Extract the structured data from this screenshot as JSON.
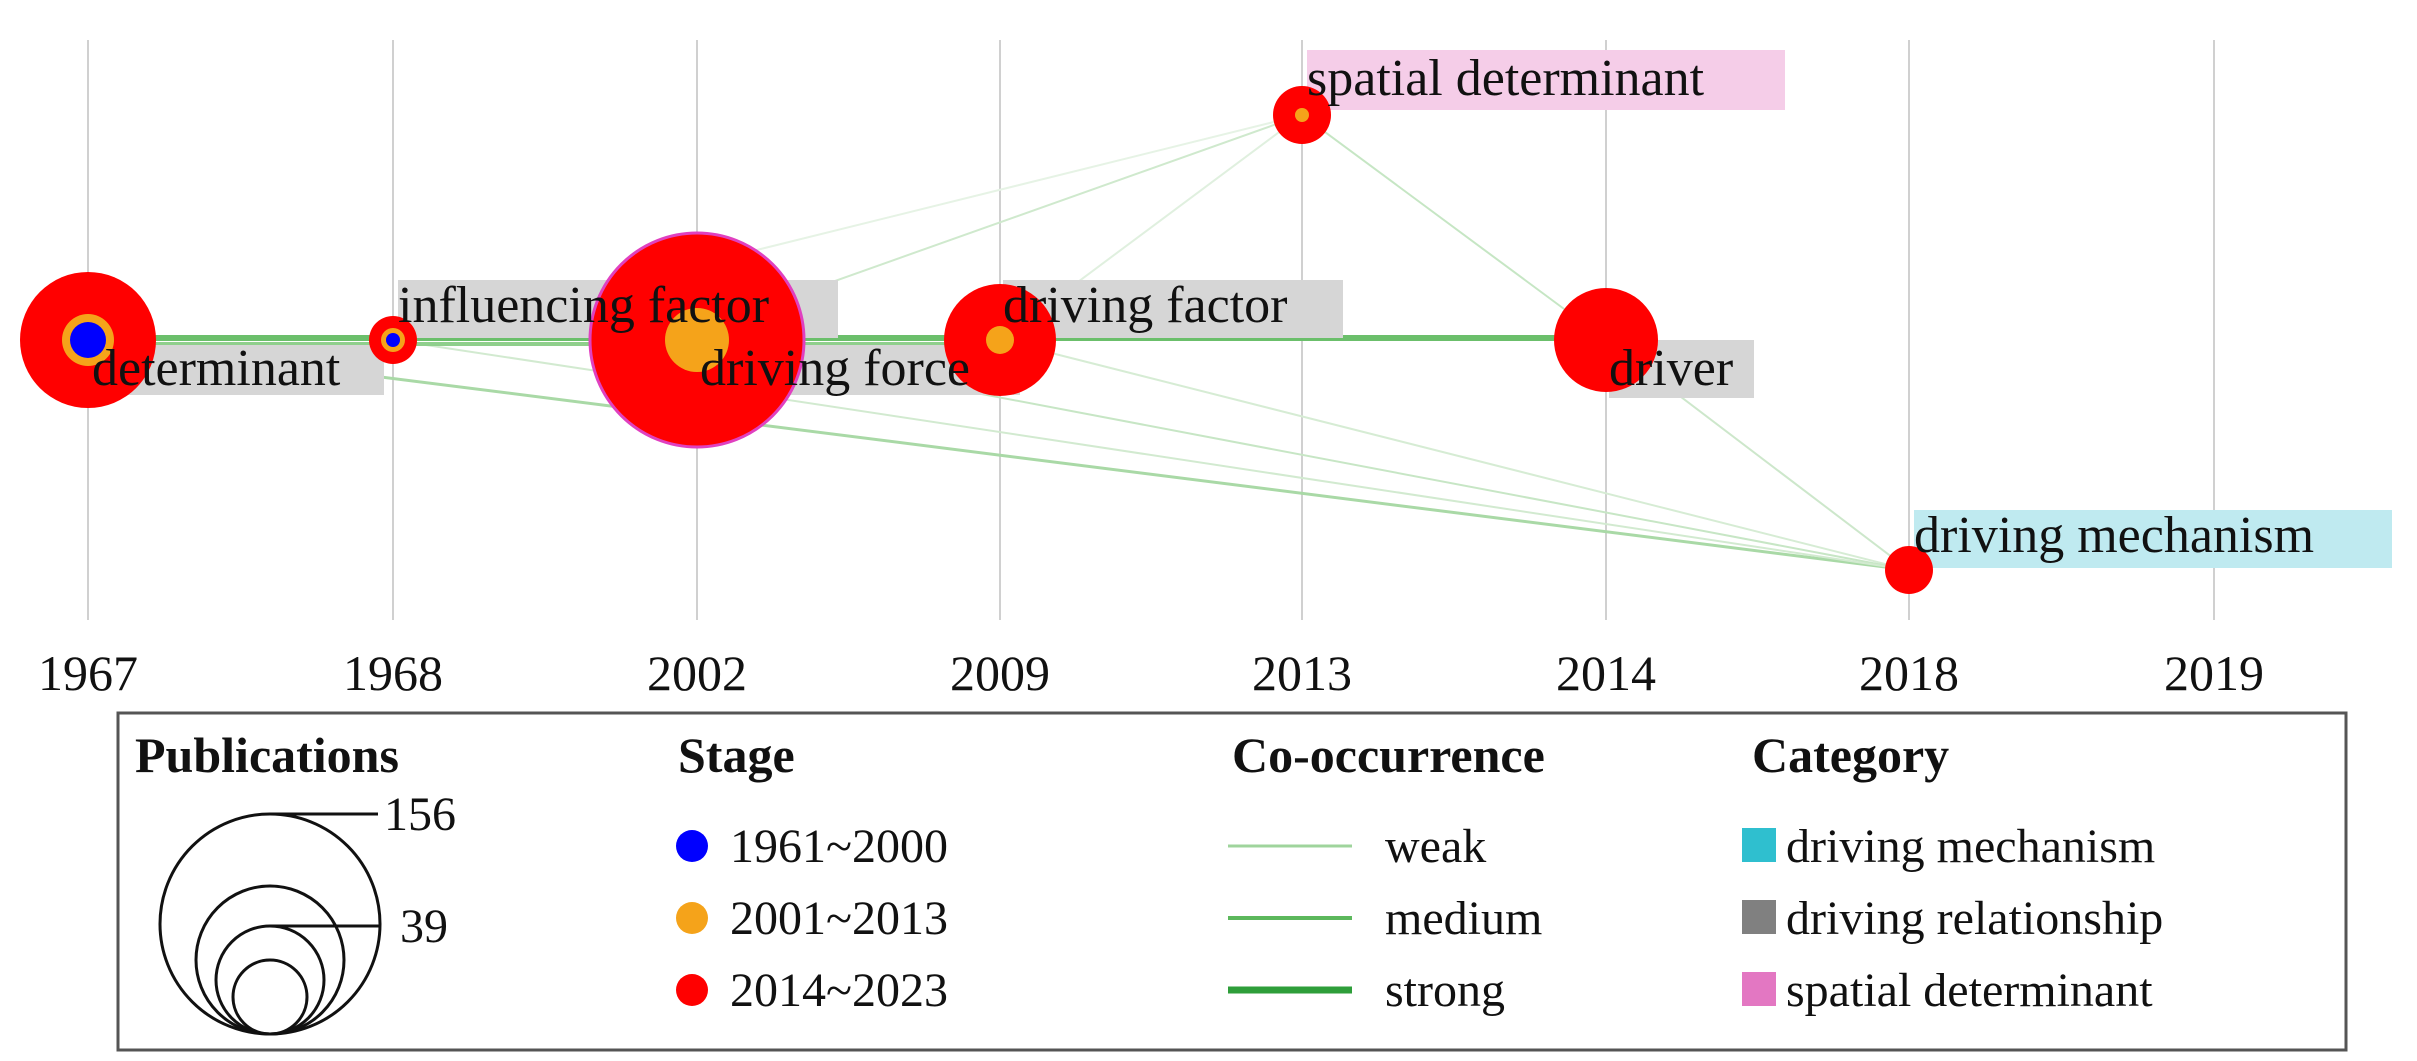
{
  "years": [
    "1967",
    "1968",
    "2002",
    "2009",
    "2013",
    "2014",
    "2018",
    "2019"
  ],
  "keywords": [
    {
      "id": "determinant",
      "label": "determinant",
      "category": "driving relationship"
    },
    {
      "id": "influencing-factor",
      "label": "influencing factor",
      "category": "driving relationship"
    },
    {
      "id": "driving-force",
      "label": "driving force",
      "category": "driving relationship"
    },
    {
      "id": "driving-factor",
      "label": "driving factor",
      "category": "driving relationship"
    },
    {
      "id": "spatial-determinant",
      "label": "spatial determinant",
      "category": "spatial determinant"
    },
    {
      "id": "driver",
      "label": "driver",
      "category": "driving relationship"
    },
    {
      "id": "driving-mechanism",
      "label": "driving mechanism",
      "category": "driving mechanism"
    }
  ],
  "legend": {
    "publications": {
      "title": "Publications",
      "values": [
        "156",
        "39"
      ]
    },
    "stage": {
      "title": "Stage",
      "items": [
        {
          "label": "1961~2000",
          "color": "#0000ff"
        },
        {
          "label": "2001~2013",
          "color": "#f5a31a"
        },
        {
          "label": "2014~2023",
          "color": "#ff0000"
        }
      ]
    },
    "cooccurrence": {
      "title": "Co-occurrence",
      "items": [
        {
          "label": "weak",
          "color": "#9fd49c"
        },
        {
          "label": "medium",
          "color": "#5cb85c"
        },
        {
          "label": "strong",
          "color": "#2e9e3a"
        }
      ]
    },
    "category": {
      "title": "Category",
      "items": [
        {
          "label": "driving mechanism",
          "color": "#2fbfcf"
        },
        {
          "label": "driving relationship",
          "color": "#808080"
        },
        {
          "label": "spatial determinant",
          "color": "#e377c2"
        }
      ]
    }
  }
}
